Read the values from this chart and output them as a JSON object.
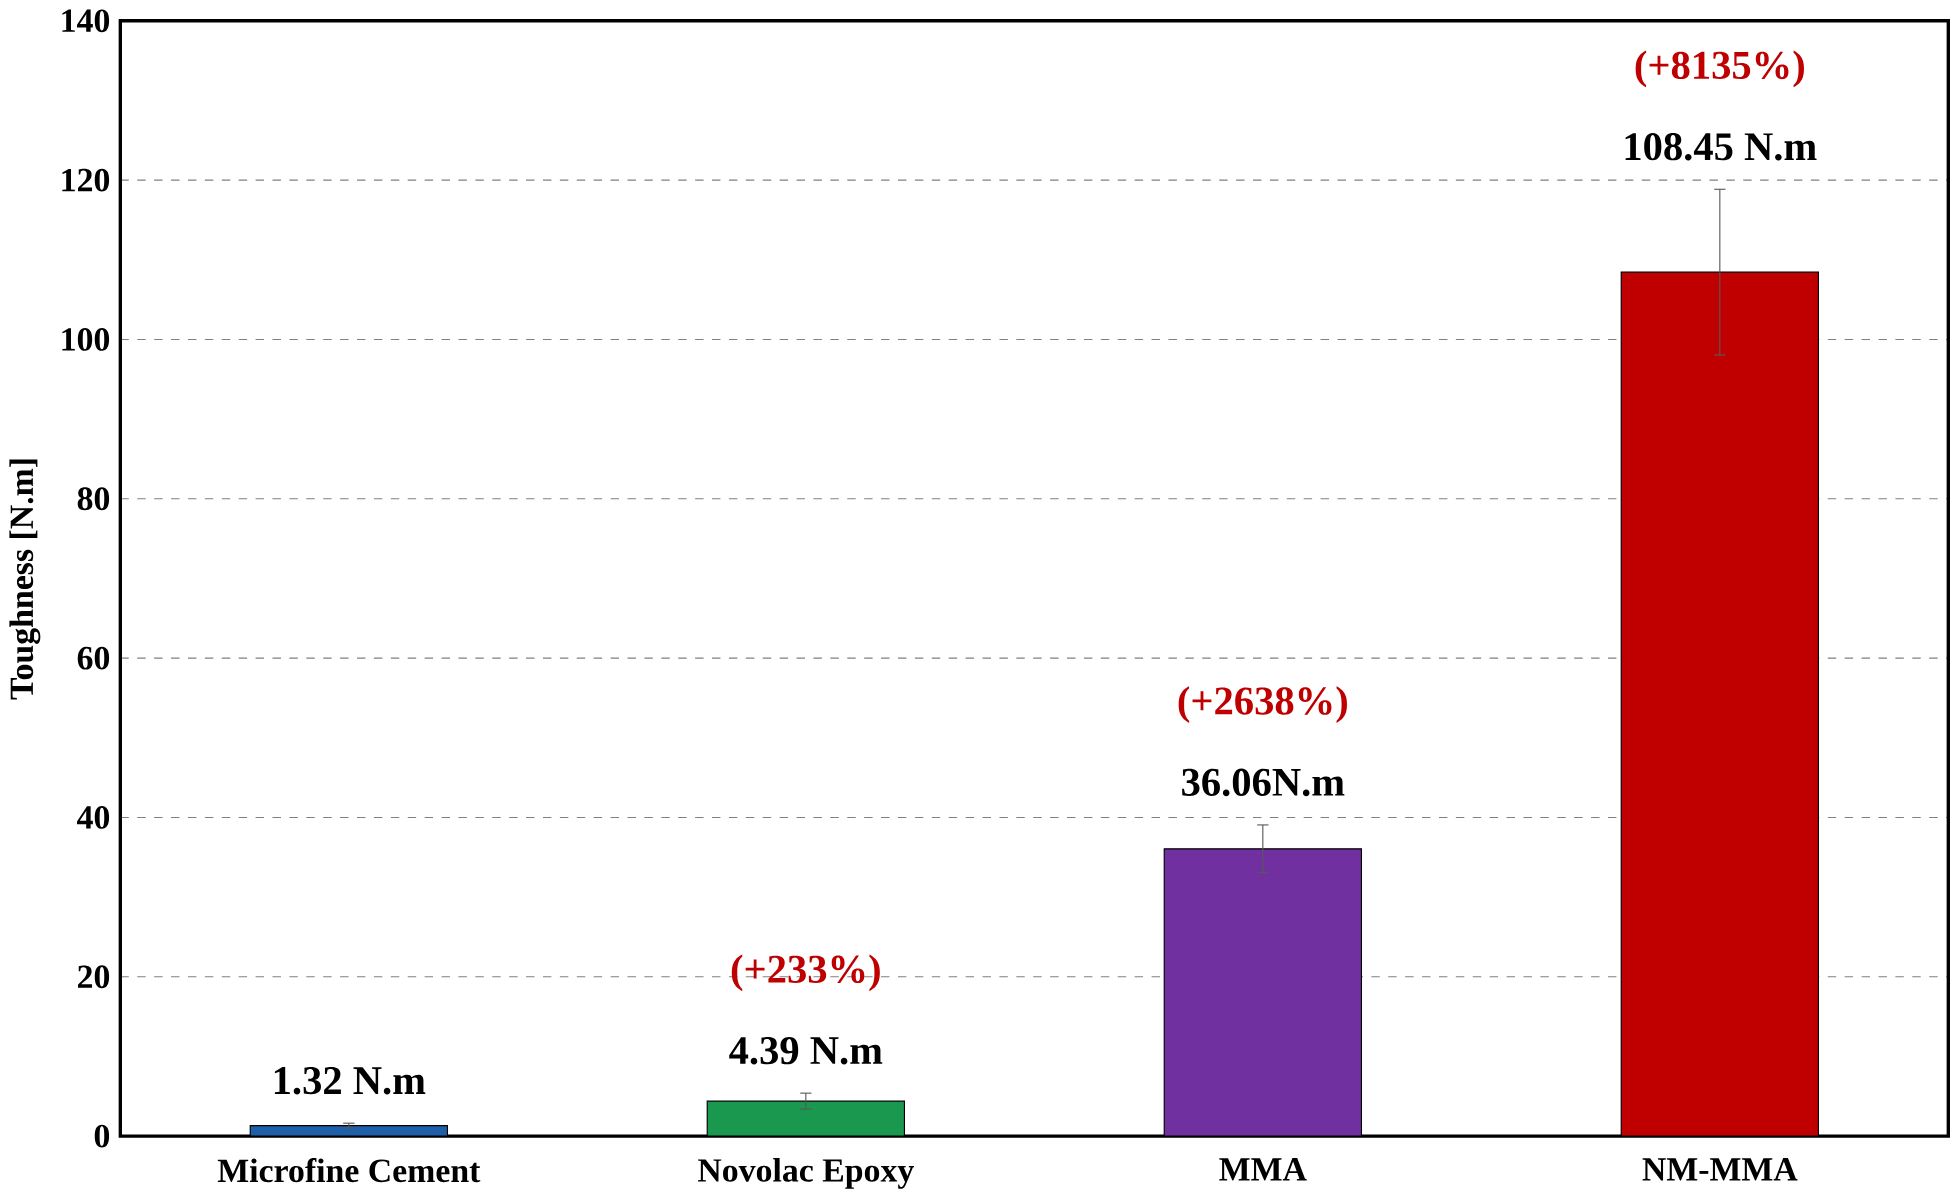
{
  "chart_data": {
    "type": "bar",
    "ylabel": "Toughness  [N.m]",
    "categories": [
      "Microfine Cement",
      "Novolac Epoxy",
      "MMA",
      "NM-MMA"
    ],
    "values": [
      1.32,
      4.39,
      36.06,
      108.45
    ],
    "colors": [
      "#1f5fa8",
      "#1a9850",
      "#7030a0",
      "#c00000"
    ],
    "errors": [
      0.3,
      1,
      3,
      10.4
    ],
    "value_labels": [
      "1.32 N.m",
      "4.39 N.m",
      "36.06N.m",
      "108.45 N.m"
    ],
    "annotations": [
      {
        "text": "(+233%)",
        "x": "Novolac Epoxy",
        "y": 5.39
      },
      {
        "text": "(+2638%)",
        "x": "MMA",
        "y": 39.06
      },
      {
        "text": "(+8135%)",
        "x": "NM-MMA",
        "y": 118.85
      }
    ],
    "ylim": [
      0,
      140
    ],
    "yticks": [
      0,
      20,
      40,
      60,
      80,
      100,
      120,
      140
    ],
    "grid": "y"
  }
}
